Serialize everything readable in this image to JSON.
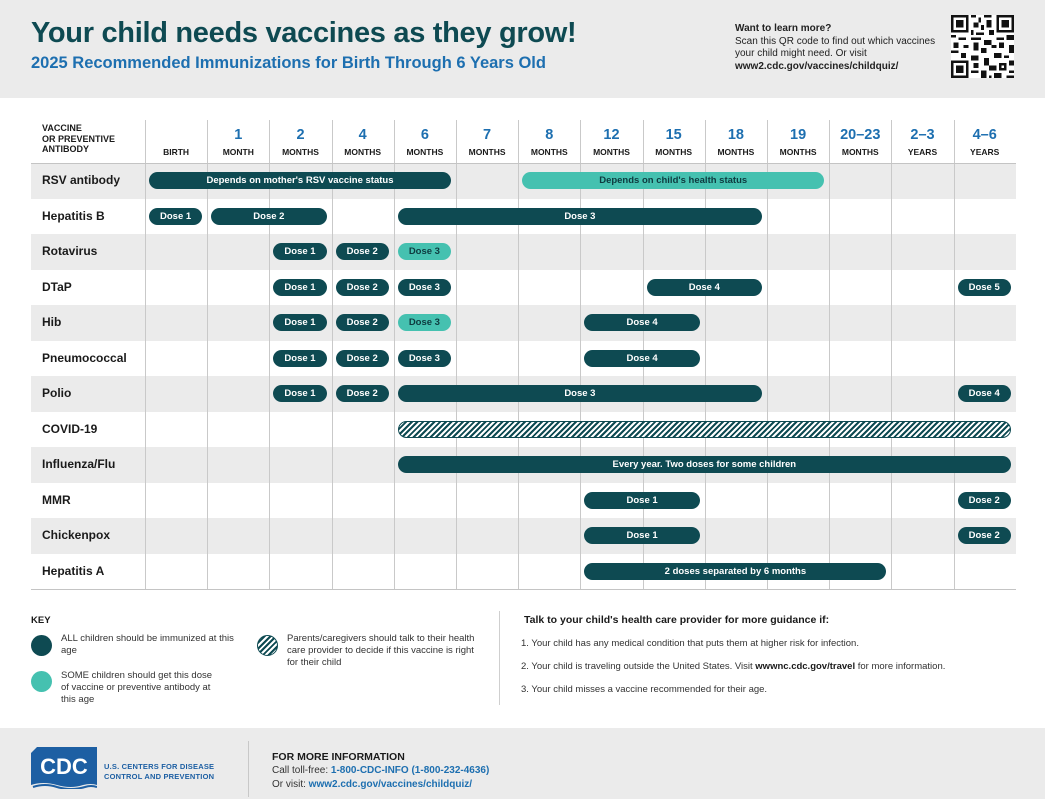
{
  "header": {
    "title": "Your child needs vaccines as they grow!",
    "subtitle": "2025 Recommended Immunizations for Birth Through 6 Years Old",
    "qr_heading": "Want to learn more?",
    "qr_text": "Scan this QR code to find out which vaccines your child might need. Or visit",
    "qr_url": "www2.cdc.gov/vaccines/childquiz/"
  },
  "table": {
    "header_label_line1": "VACCINE",
    "header_label_line2": "OR PREVENTIVE",
    "header_label_line3": "ANTIBODY",
    "columns": [
      {
        "num": "",
        "unit": "BIRTH"
      },
      {
        "num": "1",
        "unit": "MONTH"
      },
      {
        "num": "2",
        "unit": "MONTHS"
      },
      {
        "num": "4",
        "unit": "MONTHS"
      },
      {
        "num": "6",
        "unit": "MONTHS"
      },
      {
        "num": "7",
        "unit": "MONTHS"
      },
      {
        "num": "8",
        "unit": "MONTHS"
      },
      {
        "num": "12",
        "unit": "MONTHS"
      },
      {
        "num": "15",
        "unit": "MONTHS"
      },
      {
        "num": "18",
        "unit": "MONTHS"
      },
      {
        "num": "19",
        "unit": "MONTHS"
      },
      {
        "num": "20–23",
        "unit": "MONTHS"
      },
      {
        "num": "2–3",
        "unit": "YEARS"
      },
      {
        "num": "4–6",
        "unit": "YEARS"
      }
    ],
    "rows": [
      {
        "name": "RSV antibody",
        "bars": [
          {
            "start": 0,
            "end": 4.99,
            "type": "all",
            "label": "Depends on mother's RSV vaccine status"
          },
          {
            "start": 6,
            "end": 10.99,
            "type": "some",
            "label": "Depends on child's health status"
          }
        ]
      },
      {
        "name": "Hepatitis B",
        "bars": [
          {
            "start": 0,
            "end": 0.99,
            "type": "all",
            "label": "Dose 1"
          },
          {
            "start": 1,
            "end": 2.99,
            "type": "all",
            "label": "Dose 2"
          },
          {
            "start": 4,
            "end": 9.99,
            "type": "all",
            "label": "Dose 3"
          }
        ]
      },
      {
        "name": "Rotavirus",
        "bars": [
          {
            "start": 2,
            "end": 2.99,
            "type": "all",
            "label": "Dose 1"
          },
          {
            "start": 3,
            "end": 3.99,
            "type": "all",
            "label": "Dose 2"
          },
          {
            "start": 4,
            "end": 4.99,
            "type": "some",
            "label": "Dose 3"
          }
        ]
      },
      {
        "name": "DTaP",
        "bars": [
          {
            "start": 2,
            "end": 2.99,
            "type": "all",
            "label": "Dose 1"
          },
          {
            "start": 3,
            "end": 3.99,
            "type": "all",
            "label": "Dose 2"
          },
          {
            "start": 4,
            "end": 4.99,
            "type": "all",
            "label": "Dose 3"
          },
          {
            "start": 8,
            "end": 9.99,
            "type": "all",
            "label": "Dose 4"
          },
          {
            "start": 13,
            "end": 13.99,
            "type": "all",
            "label": "Dose 5"
          }
        ]
      },
      {
        "name": "Hib",
        "bars": [
          {
            "start": 2,
            "end": 2.99,
            "type": "all",
            "label": "Dose 1"
          },
          {
            "start": 3,
            "end": 3.99,
            "type": "all",
            "label": "Dose 2"
          },
          {
            "start": 4,
            "end": 4.99,
            "type": "some",
            "label": "Dose 3"
          },
          {
            "start": 7,
            "end": 8.99,
            "type": "all",
            "label": "Dose 4"
          }
        ]
      },
      {
        "name": "Pneumococcal",
        "bars": [
          {
            "start": 2,
            "end": 2.99,
            "type": "all",
            "label": "Dose 1"
          },
          {
            "start": 3,
            "end": 3.99,
            "type": "all",
            "label": "Dose 2"
          },
          {
            "start": 4,
            "end": 4.99,
            "type": "all",
            "label": "Dose 3"
          },
          {
            "start": 7,
            "end": 8.99,
            "type": "all",
            "label": "Dose 4"
          }
        ]
      },
      {
        "name": "Polio",
        "bars": [
          {
            "start": 2,
            "end": 2.99,
            "type": "all",
            "label": "Dose 1"
          },
          {
            "start": 3,
            "end": 3.99,
            "type": "all",
            "label": "Dose 2"
          },
          {
            "start": 4,
            "end": 9.99,
            "type": "all",
            "label": "Dose 3"
          },
          {
            "start": 13,
            "end": 13.99,
            "type": "all",
            "label": "Dose 4"
          }
        ]
      },
      {
        "name": "COVID-19",
        "bars": [
          {
            "start": 4,
            "end": 13.99,
            "type": "talk",
            "label": ""
          }
        ]
      },
      {
        "name": "Influenza/Flu",
        "bars": [
          {
            "start": 4,
            "end": 13.99,
            "type": "all",
            "label": "Every year. Two doses for some children"
          }
        ]
      },
      {
        "name": "MMR",
        "bars": [
          {
            "start": 7,
            "end": 8.99,
            "type": "all",
            "label": "Dose 1"
          },
          {
            "start": 13,
            "end": 13.99,
            "type": "all",
            "label": "Dose 2"
          }
        ]
      },
      {
        "name": "Chickenpox",
        "bars": [
          {
            "start": 7,
            "end": 8.99,
            "type": "all",
            "label": "Dose 1"
          },
          {
            "start": 13,
            "end": 13.99,
            "type": "all",
            "label": "Dose 2"
          }
        ]
      },
      {
        "name": "Hepatitis A",
        "bars": [
          {
            "start": 7,
            "end": 11.99,
            "type": "all",
            "label": "2 doses separated by 6 months"
          }
        ]
      }
    ]
  },
  "key": {
    "title": "KEY",
    "all_text": "ALL children should be immunized at this age",
    "some_text": "SOME children should get this dose of vaccine or preventive antibody at this age",
    "talk_text": "Parents/caregivers should talk to their health care provider to decide if this vaccine is right for their child"
  },
  "guidance": {
    "title": "Talk to your child's health care provider for more guidance if:",
    "item1": "1. Your child has any medical condition that puts them at higher risk for infection.",
    "item2_pre": "2. Your child is traveling outside the United States. Visit ",
    "item2_link": "wwwnc.cdc.gov/travel",
    "item2_post": " for more information.",
    "item3": "3. Your child misses a vaccine recommended for their age."
  },
  "footer": {
    "logo_text": "CDC",
    "agency_line1": "U.S. CENTERS FOR DISEASE",
    "agency_line2": "CONTROL AND PREVENTION",
    "more_title": "FOR MORE INFORMATION",
    "phone_label": "Call toll-free: ",
    "phone": "1-800-CDC-INFO (1-800-232-4636)",
    "visit_label": "Or visit: ",
    "visit_url": "www2.cdc.gov/vaccines/childquiz/"
  },
  "colors": {
    "all": "#0e4a52",
    "some": "#45c1b0",
    "title": "#0e4a52",
    "accent_blue": "#1d6fb0"
  }
}
